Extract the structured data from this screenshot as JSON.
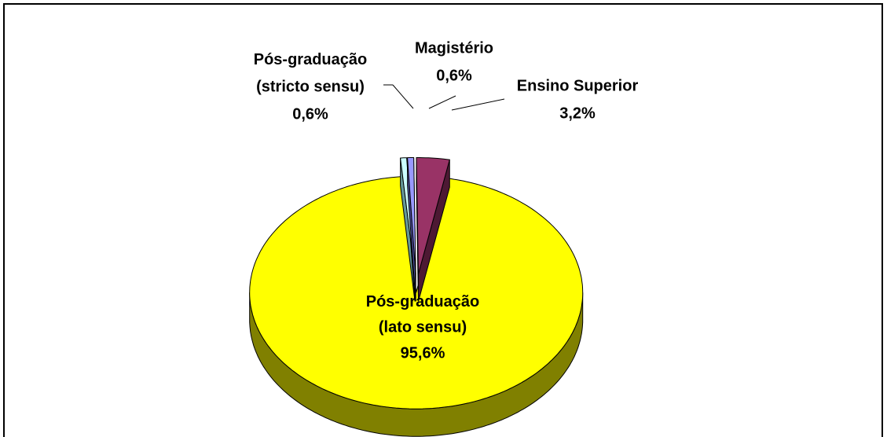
{
  "chart_data": {
    "type": "pie",
    "categories": [
      "Pós-graduação (stricto sensu)",
      "Magistério",
      "Ensino Superior",
      "Pós-graduação (lato sensu)"
    ],
    "values": [
      0.6,
      0.6,
      3.2,
      95.6
    ],
    "value_labels": [
      "0,6%",
      "0,6%",
      "3,2%",
      "95,6%"
    ],
    "colors": [
      "#ccffff",
      "#9999ff",
      "#993366",
      "#ffff00"
    ],
    "side_colors": [
      "#669999",
      "#4d4d99",
      "#4d1933",
      "#808000"
    ]
  }
}
